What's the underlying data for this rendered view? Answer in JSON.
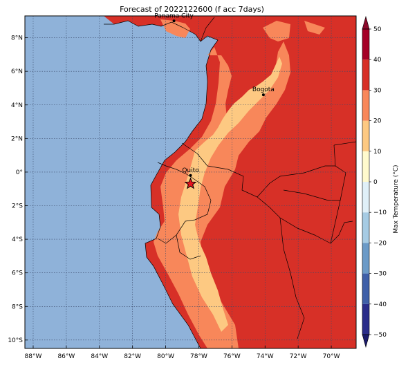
{
  "title": "Forecast of 2022122600 (f acc 7days)",
  "map": {
    "type": "filled-contour-map",
    "lon_range": [
      -88.5,
      -68.5
    ],
    "lat_range": [
      -10.5,
      9.3
    ],
    "lon_ticks": [
      {
        "value": -88,
        "label": "88°W"
      },
      {
        "value": -86,
        "label": "86°W"
      },
      {
        "value": -84,
        "label": "84°W"
      },
      {
        "value": -82,
        "label": "82°W"
      },
      {
        "value": -80,
        "label": "80°W"
      },
      {
        "value": -78,
        "label": "78°W"
      },
      {
        "value": -76,
        "label": "76°W"
      },
      {
        "value": -74,
        "label": "74°W"
      },
      {
        "value": -72,
        "label": "72°W"
      },
      {
        "value": -70,
        "label": "70°W"
      }
    ],
    "lat_ticks": [
      {
        "value": 8,
        "label": "8°N"
      },
      {
        "value": 6,
        "label": "6°N"
      },
      {
        "value": 4,
        "label": "4°N"
      },
      {
        "value": 2,
        "label": "2°N"
      },
      {
        "value": 0,
        "label": "0°"
      },
      {
        "value": -2,
        "label": "2°S"
      },
      {
        "value": -4,
        "label": "4°S"
      },
      {
        "value": -6,
        "label": "6°S"
      },
      {
        "value": -8,
        "label": "8°S"
      },
      {
        "value": -10,
        "label": "10°S"
      }
    ],
    "grid": true,
    "ocean_color": "#8fb2d9",
    "cities": [
      {
        "name": "Panama City",
        "lon": -79.5,
        "lat": 9.0,
        "marker": "dot"
      },
      {
        "name": "Bogota",
        "lon": -74.1,
        "lat": 4.6,
        "marker": "dot"
      },
      {
        "name": "Quito",
        "lon": -78.5,
        "lat": -0.2,
        "marker": "dot"
      }
    ],
    "highlight": {
      "lon": -78.5,
      "lat": -0.7,
      "marker": "star",
      "color": "#e8141e"
    }
  },
  "colorbar": {
    "label": "Max Temperature (°C)",
    "range": [
      -50,
      50
    ],
    "ticks": [
      50,
      40,
      30,
      20,
      10,
      0,
      -10,
      -20,
      -30,
      -40,
      -50
    ],
    "extend": "both",
    "colors": [
      {
        "from": -50,
        "to": -40,
        "color": "#2a2c8a"
      },
      {
        "from": -40,
        "to": -30,
        "color": "#3f5fa8"
      },
      {
        "from": -30,
        "to": -20,
        "color": "#6b9ac7"
      },
      {
        "from": -20,
        "to": -10,
        "color": "#a6cbe3"
      },
      {
        "from": -10,
        "to": 0,
        "color": "#e0f0f8"
      },
      {
        "from": 0,
        "to": 10,
        "color": "#fffacd"
      },
      {
        "from": 10,
        "to": 20,
        "color": "#fdc982"
      },
      {
        "from": 20,
        "to": 30,
        "color": "#f8875a"
      },
      {
        "from": 30,
        "to": 40,
        "color": "#d73027"
      },
      {
        "from": 40,
        "to": 50,
        "color": "#a50026"
      }
    ],
    "low_extend_color": "#1a1a6b",
    "high_extend_color": "#8b0a2b"
  }
}
